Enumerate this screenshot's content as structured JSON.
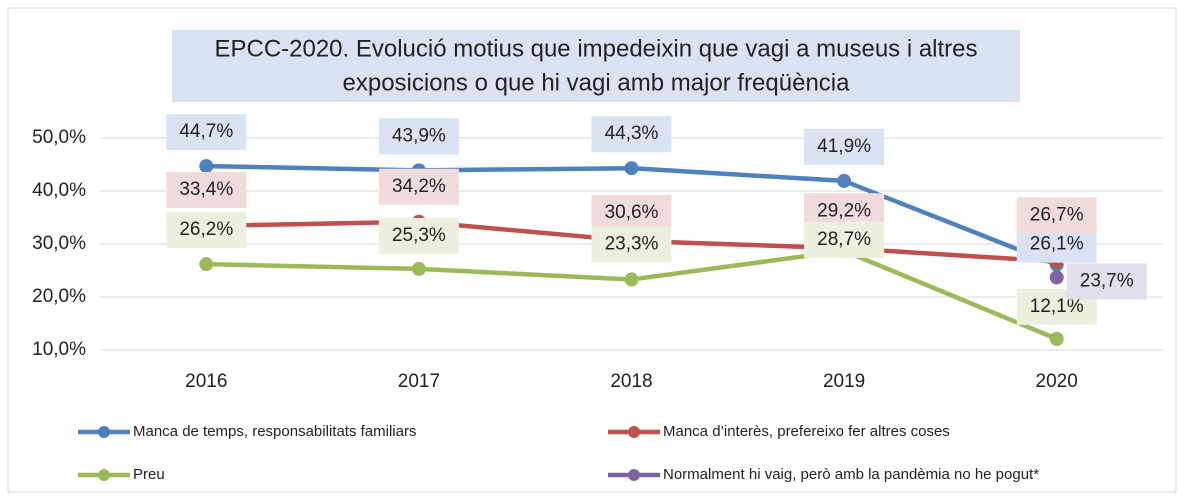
{
  "chart_data": {
    "type": "line",
    "title_lines": [
      "EPCC-2020. Evolució motius que impedeixin que vagi a museus i altres",
      "exposicions o que hi vagi amb major freqüència"
    ],
    "categories": [
      "2016",
      "2017",
      "2018",
      "2019",
      "2020"
    ],
    "series": [
      {
        "name": "Manca de temps, responsabilitats familiars",
        "color": "#4f81bd",
        "label_bg": "#dae3f3",
        "values": [
          44.7,
          43.9,
          44.3,
          41.9,
          26.1
        ],
        "value_labels": [
          "44,7%",
          "43,9%",
          "44,3%",
          "41,9%",
          "26,1%"
        ]
      },
      {
        "name": "Manca d’interès, prefereixo fer altres coses",
        "color": "#c0504d",
        "label_bg": "#f2dcdb",
        "values": [
          33.4,
          34.2,
          30.6,
          29.2,
          26.7
        ],
        "value_labels": [
          "33,4%",
          "34,2%",
          "30,6%",
          "29,2%",
          "26,7%"
        ]
      },
      {
        "name": "Preu",
        "color": "#9bbb59",
        "label_bg": "#ebf1de",
        "values": [
          26.2,
          25.3,
          23.3,
          28.7,
          12.1
        ],
        "value_labels": [
          "26,2%",
          "25,3%",
          "23,3%",
          "28,7%",
          "12,1%"
        ]
      },
      {
        "name": "Normalment hi vaig, però amb la pandèmia no he pogut*",
        "color": "#8064a2",
        "label_bg": "#e4dfec",
        "values": [
          null,
          null,
          null,
          null,
          23.7
        ],
        "value_labels": [
          null,
          null,
          null,
          null,
          "23,7%"
        ]
      }
    ],
    "ylim": [
      10,
      50
    ],
    "yticks": [
      {
        "value": 10,
        "label": "10,0%"
      },
      {
        "value": 20,
        "label": "20,0%"
      },
      {
        "value": 30,
        "label": "30,0%"
      },
      {
        "value": 40,
        "label": "40,0%"
      },
      {
        "value": 50,
        "label": "50,0%"
      }
    ],
    "grid": true,
    "legend": "bottom"
  }
}
